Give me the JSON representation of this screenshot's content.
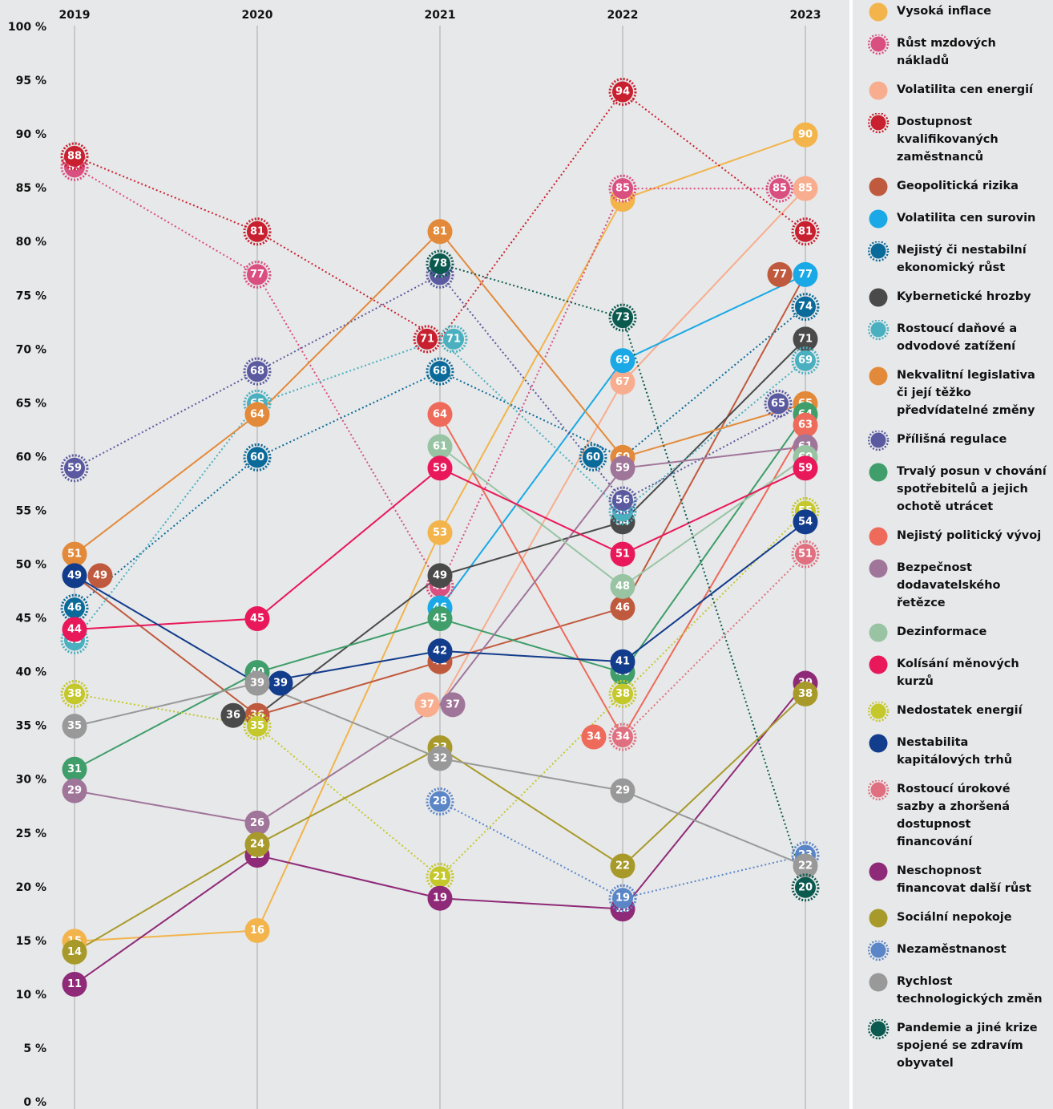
{
  "chart_data": {
    "type": "line",
    "x": [
      "2019",
      "2020",
      "2021",
      "2022",
      "2023"
    ],
    "ylim": [
      0,
      100
    ],
    "yticks": [
      {
        "value": 0,
        "label": "0 %"
      },
      {
        "value": 5,
        "label": "5 %"
      },
      {
        "value": 10,
        "label": "10 %"
      },
      {
        "value": 15,
        "label": "15 %"
      },
      {
        "value": 20,
        "label": "20 %"
      },
      {
        "value": 25,
        "label": "25 %"
      },
      {
        "value": 30,
        "label": "30 %"
      },
      {
        "value": 35,
        "label": "35 %"
      },
      {
        "value": 40,
        "label": "40 %"
      },
      {
        "value": 45,
        "label": "45 %"
      },
      {
        "value": 50,
        "label": "50 %"
      },
      {
        "value": 55,
        "label": "55 %"
      },
      {
        "value": 60,
        "label": "60 %"
      },
      {
        "value": 65,
        "label": "65 %"
      },
      {
        "value": 70,
        "label": "70 %"
      },
      {
        "value": 75,
        "label": "75 %"
      },
      {
        "value": 80,
        "label": "80 %"
      },
      {
        "value": 85,
        "label": "85 %"
      },
      {
        "value": 90,
        "label": "90 %"
      },
      {
        "value": 95,
        "label": "95 %"
      },
      {
        "value": 100,
        "label": "100 %"
      }
    ],
    "grid": true,
    "series": [
      {
        "name": "Vysoká inflace",
        "color": "#f2b44b",
        "dotted": false,
        "values": [
          15,
          16,
          53,
          84,
          90
        ]
      },
      {
        "name": "Růst mzdových nákladů",
        "color": "#d94f7f",
        "dotted": true,
        "values": [
          87,
          77,
          48,
          85,
          85
        ]
      },
      {
        "name": "Volatilita cen energií",
        "color": "#f7ad8e",
        "dotted": false,
        "values": [
          null,
          null,
          37,
          67,
          85
        ]
      },
      {
        "name": "Dostupnost kvalifikovaných zaměstnanců",
        "color": "#c8202f",
        "dotted": true,
        "values": [
          88,
          81,
          71,
          94,
          81
        ]
      },
      {
        "name": "Geopolitická rizika",
        "color": "#c05a3e",
        "dotted": false,
        "values": [
          49,
          36,
          41,
          46,
          77
        ]
      },
      {
        "name": "Volatilita cen surovin",
        "color": "#1aa9e6",
        "dotted": false,
        "values": [
          null,
          null,
          46,
          69,
          77
        ]
      },
      {
        "name": "Nejistý či nestabilní ekonomický růst",
        "color": "#0a6a9a",
        "dotted": true,
        "values": [
          46,
          60,
          68,
          60,
          74
        ]
      },
      {
        "name": "Kybernetické hrozby",
        "color": "#4a4a4a",
        "dotted": false,
        "values": [
          null,
          36,
          49,
          54,
          71
        ]
      },
      {
        "name": "Rostoucí daňové a odvodové zatížení",
        "color": "#4ab0c0",
        "dotted": true,
        "values": [
          43,
          65,
          71,
          55,
          69
        ]
      },
      {
        "name": "Nekvalitní legislativa či její těžko předvídatelné změny",
        "color": "#e38a3a",
        "dotted": false,
        "values": [
          51,
          64,
          81,
          60,
          65
        ]
      },
      {
        "name": "Přílišná regulace",
        "color": "#5b5aa0",
        "dotted": true,
        "values": [
          59,
          68,
          77,
          56,
          65
        ]
      },
      {
        "name": "Trvalý posun v chování spotřebitelů a jejich ochotě utrácet",
        "color": "#3f9e6a",
        "dotted": false,
        "values": [
          31,
          40,
          45,
          40,
          64
        ]
      },
      {
        "name": "Nejistý politický vývoj",
        "color": "#ee6a5a",
        "dotted": false,
        "values": [
          null,
          null,
          64,
          34,
          63
        ]
      },
      {
        "name": "Bezpečnost dodavatelského řetězce",
        "color": "#a0759a",
        "dotted": false,
        "values": [
          29,
          26,
          37,
          59,
          61
        ]
      },
      {
        "name": "Dezinformace",
        "color": "#98c4a4",
        "dotted": false,
        "values": [
          null,
          null,
          61,
          48,
          60
        ]
      },
      {
        "name": "Kolísání měnových kurzů",
        "color": "#e8185a",
        "dotted": false,
        "values": [
          44,
          45,
          59,
          51,
          59
        ]
      },
      {
        "name": "Nedostatek energií",
        "color": "#c4c82a",
        "dotted": true,
        "values": [
          38,
          35,
          21,
          38,
          55
        ]
      },
      {
        "name": "Nestabilita kapitálových trhů",
        "color": "#123c8c",
        "dotted": false,
        "values": [
          49,
          39,
          42,
          41,
          54
        ]
      },
      {
        "name": "Rostoucí úrokové sazby a zhoršená dostupnost financování",
        "color": "#e07080",
        "dotted": true,
        "values": [
          null,
          null,
          null,
          34,
          51
        ]
      },
      {
        "name": "Neschopnost financovat další růst",
        "color": "#8e2a78",
        "dotted": false,
        "values": [
          11,
          23,
          19,
          18,
          39
        ]
      },
      {
        "name": "Sociální nepokoje",
        "color": "#a89a2a",
        "dotted": false,
        "values": [
          14,
          24,
          33,
          22,
          38
        ]
      },
      {
        "name": "Nezaměstnanost",
        "color": "#5a86c8",
        "dotted": true,
        "values": [
          null,
          null,
          28,
          19,
          23
        ]
      },
      {
        "name": "Rychlost technologických změn",
        "color": "#999999",
        "dotted": false,
        "values": [
          35,
          39,
          32,
          29,
          22
        ]
      },
      {
        "name": "Pandemie a jiné krize spojené se zdravím obyvatel",
        "color": "#0b5a50",
        "dotted": true,
        "values": [
          null,
          null,
          78,
          73,
          20
        ]
      }
    ]
  }
}
